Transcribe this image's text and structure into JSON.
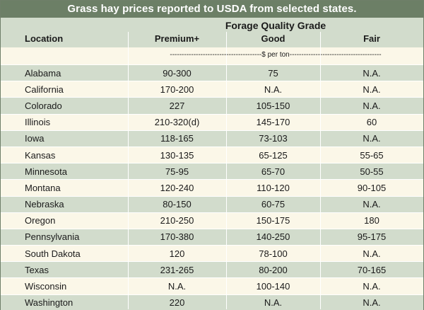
{
  "title": "Grass hay prices reported to USDA from selected states.",
  "header": {
    "grade_label": "Forage Quality Grade",
    "location_label": "Location",
    "columns": [
      "Premium+",
      "Good",
      "Fair"
    ],
    "unit_label": "---------------------------------------$ per ton---------------------------------------"
  },
  "rows": [
    {
      "location": "Alabama",
      "premium": "90-300",
      "good": "75",
      "fair": "N.A."
    },
    {
      "location": "California",
      "premium": "170-200",
      "good": "N.A.",
      "fair": "N.A."
    },
    {
      "location": "Colorado",
      "premium": "227",
      "good": "105-150",
      "fair": "N.A."
    },
    {
      "location": "Illinois",
      "premium": "210-320(d)",
      "good": "145-170",
      "fair": "60"
    },
    {
      "location": "Iowa",
      "premium": "118-165",
      "good": "73-103",
      "fair": "N.A."
    },
    {
      "location": "Kansas",
      "premium": "130-135",
      "good": "65-125",
      "fair": "55-65"
    },
    {
      "location": "Minnesota",
      "premium": "75-95",
      "good": "65-70",
      "fair": "50-55"
    },
    {
      "location": "Montana",
      "premium": "120-240",
      "good": "110-120",
      "fair": "90-105"
    },
    {
      "location": "Nebraska",
      "premium": "80-150",
      "good": "60-75",
      "fair": "N.A."
    },
    {
      "location": "Oregon",
      "premium": "210-250",
      "good": "150-175",
      "fair": "180"
    },
    {
      "location": "Pennsylvania",
      "premium": "170-380",
      "good": "140-250",
      "fair": "95-175"
    },
    {
      "location": "South Dakota",
      "premium": "120",
      "good": "78-100",
      "fair": "N.A."
    },
    {
      "location": "Texas",
      "premium": "231-265",
      "good": "80-200",
      "fair": "70-165"
    },
    {
      "location": "Wisconsin",
      "premium": "N.A.",
      "good": "100-140",
      "fair": "N.A."
    },
    {
      "location": "Washington",
      "premium": "220",
      "good": "N.A.",
      "fair": "N.A."
    }
  ],
  "colors": {
    "title_bg": "#6c7f66",
    "band": "#d2dccc",
    "paper": "#fbf7e8"
  }
}
